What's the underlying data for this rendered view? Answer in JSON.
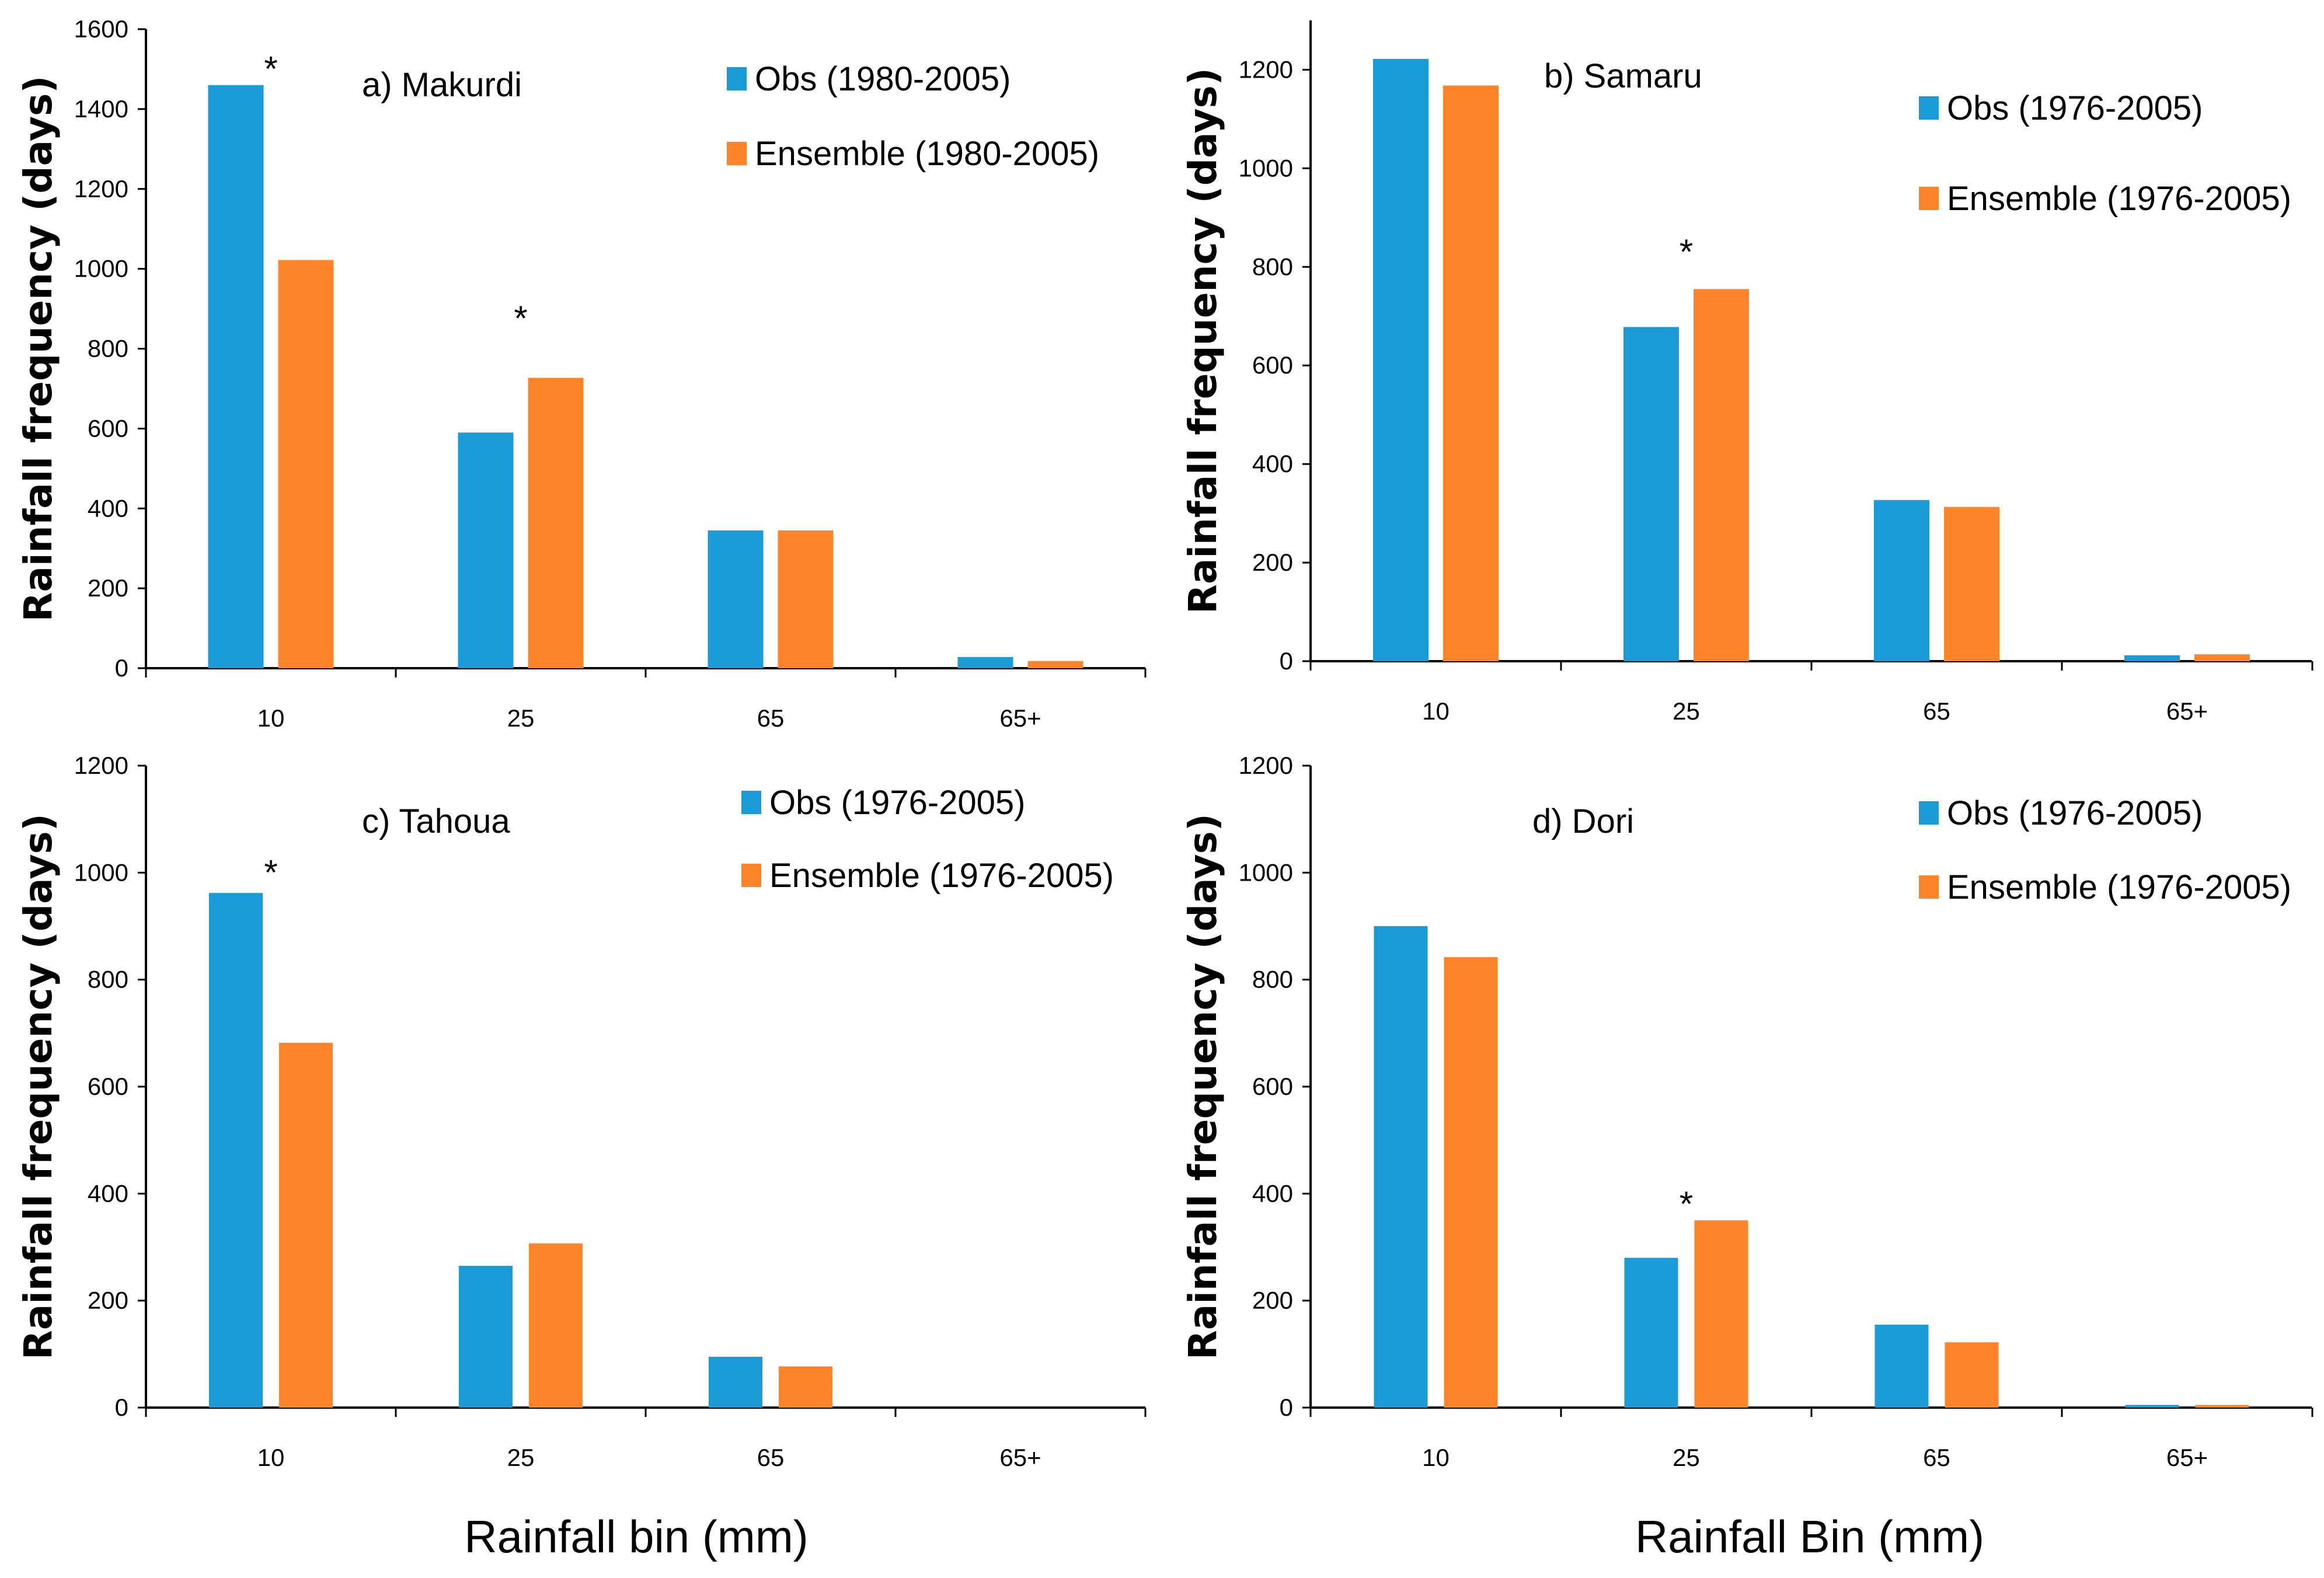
{
  "colors": {
    "obs": "#1a9bd7",
    "ensemble": "#fd8429",
    "axis": "#000000"
  },
  "figure": {
    "xlabel_left": "Rainfall bin (mm)",
    "xlabel_right": "Rainfall Bin (mm)"
  },
  "chart_data": [
    {
      "type": "bar",
      "title": "a) Makurdi",
      "ylabel": "Rainfall frequency (days)",
      "categories": [
        "10",
        "25",
        "65",
        "65+"
      ],
      "ylim": [
        0,
        1600
      ],
      "yticks": [
        "0",
        "200",
        "400",
        "600",
        "800",
        "1000",
        "1200",
        "1400",
        "1600"
      ],
      "series": [
        {
          "name": "Obs (1980-2005)",
          "values": [
            1460,
            590,
            345,
            28
          ]
        },
        {
          "name": "Ensemble (1980-2005)",
          "values": [
            1022,
            727,
            345,
            18
          ]
        }
      ],
      "annotations": [
        {
          "text": "*",
          "category": "10",
          "value": 1500
        },
        {
          "text": "*",
          "category": "25",
          "value": 875
        }
      ],
      "legend": "top-right"
    },
    {
      "type": "bar",
      "title": "b) Samaru",
      "ylabel": "Rainfall frequency (days)",
      "categories": [
        "10",
        "25",
        "65",
        "65+"
      ],
      "ylim": [
        0,
        1300
      ],
      "yticks": [
        "0",
        "200",
        "400",
        "600",
        "800",
        "1000",
        "1200"
      ],
      "series": [
        {
          "name": "Obs (1976-2005)",
          "values": [
            1222,
            678,
            327,
            12
          ]
        },
        {
          "name": "Ensemble (1976-2005)",
          "values": [
            1168,
            755,
            313,
            14
          ]
        }
      ],
      "annotations": [
        {
          "text": "*",
          "category": "25",
          "value": 830
        }
      ],
      "legend": "top-right"
    },
    {
      "type": "bar",
      "title": "c) Tahoua",
      "ylabel": "Rainfall frequency (days)",
      "categories": [
        "10",
        "25",
        "65",
        "65+"
      ],
      "ylim": [
        0,
        1200
      ],
      "yticks": [
        "0",
        "200",
        "400",
        "600",
        "800",
        "1000",
        "1200"
      ],
      "series": [
        {
          "name": "Obs (1976-2005)",
          "values": [
            962,
            265,
            95,
            0
          ]
        },
        {
          "name": "Ensemble (1976-2005)",
          "values": [
            682,
            307,
            77,
            0
          ]
        }
      ],
      "annotations": [
        {
          "text": "*",
          "category": "10",
          "value": 1000
        }
      ],
      "legend": "top-right"
    },
    {
      "type": "bar",
      "title": "d) Dori",
      "ylabel": "Rainfall frequency (days)",
      "categories": [
        "10",
        "25",
        "65",
        "65+"
      ],
      "ylim": [
        0,
        1200
      ],
      "yticks": [
        "0",
        "200",
        "400",
        "600",
        "800",
        "1000",
        "1200"
      ],
      "series": [
        {
          "name": "Obs (1976-2005)",
          "values": [
            900,
            280,
            155,
            5
          ]
        },
        {
          "name": "Ensemble (1976-2005)",
          "values": [
            842,
            350,
            122,
            5
          ]
        }
      ],
      "annotations": [
        {
          "text": "*",
          "category": "25",
          "value": 380
        }
      ],
      "legend": "top-right"
    }
  ]
}
